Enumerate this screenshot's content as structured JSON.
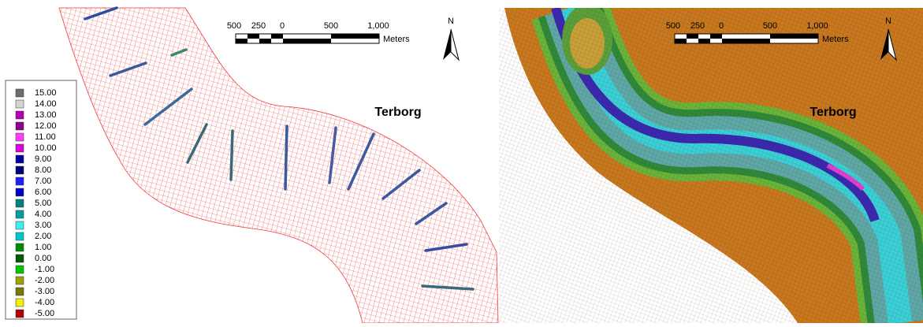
{
  "left_panel": {
    "legend": [
      {
        "label": "15.00",
        "color": "#6e6e6e"
      },
      {
        "label": "14.00",
        "color": "#d4d4d4"
      },
      {
        "label": "13.00",
        "color": "#b400b4"
      },
      {
        "label": "12.00",
        "color": "#8c008c"
      },
      {
        "label": "11.00",
        "color": "#ff3cff"
      },
      {
        "label": "10.00",
        "color": "#dc00dc"
      },
      {
        "label": "9.00",
        "color": "#0000a0"
      },
      {
        "label": "8.00",
        "color": "#000078"
      },
      {
        "label": "7.00",
        "color": "#1e1eff"
      },
      {
        "label": "6.00",
        "color": "#0000c8"
      },
      {
        "label": "5.00",
        "color": "#008282"
      },
      {
        "label": "4.00",
        "color": "#00a0a0"
      },
      {
        "label": "3.00",
        "color": "#3cf0f0"
      },
      {
        "label": "2.00",
        "color": "#00c8c8"
      },
      {
        "label": "1.00",
        "color": "#008c00"
      },
      {
        "label": "0.00",
        "color": "#005a00"
      },
      {
        "label": "-1.00",
        "color": "#00c800"
      },
      {
        "label": "-2.00",
        "color": "#a0a000"
      },
      {
        "label": "-3.00",
        "color": "#787800"
      },
      {
        "label": "-4.00",
        "color": "#f0f000"
      },
      {
        "label": "-5.00",
        "color": "#b40000"
      }
    ],
    "scale_bar": {
      "labels": [
        "500",
        "250",
        "0",
        "500",
        "1,000"
      ],
      "unit": "Meters"
    },
    "north_label": "N",
    "place_label": "Terborg"
  },
  "right_panel": {
    "scale_bar": {
      "labels": [
        "500",
        "250",
        "0",
        "500",
        "1,000"
      ],
      "unit": "Meters"
    },
    "north_label": "N",
    "place_label": "Terborg"
  }
}
